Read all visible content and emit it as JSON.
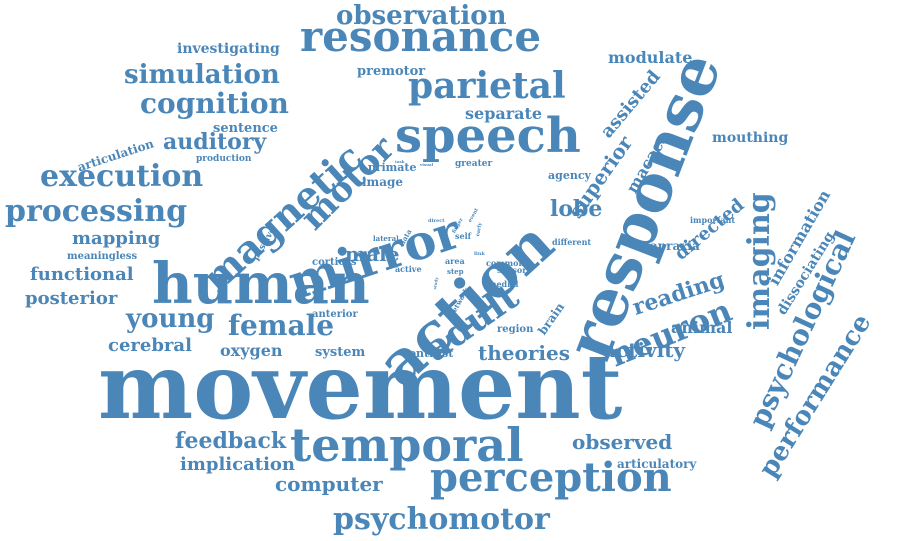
{
  "color": "#4a86b8",
  "words": [
    "movement",
    "response",
    "action",
    "human",
    "mirror",
    "speech",
    "temporal",
    "magnetic",
    "resonance",
    "perception",
    "adult",
    "parietal",
    "psychological",
    "imaging",
    "neuron",
    "performance",
    "motor",
    "processing",
    "execution",
    "psychomotor",
    "female",
    "cognition",
    "simulation",
    "observation",
    "young",
    "feedback",
    "auditory",
    "mapping",
    "observed",
    "reading",
    "functional",
    "lobe",
    "superior",
    "directed",
    "information",
    "posterior",
    "activity",
    "theories",
    "implication",
    "computer",
    "assisted",
    "macaca",
    "oxygen",
    "cerebral",
    "male",
    "animal",
    "separate",
    "modulate",
    "investigating",
    "mouthing",
    "dissociating",
    "sentence",
    "articulation",
    "apraxia",
    "articulatory",
    "premotor",
    "image",
    "agency",
    "primate",
    "meaningless",
    "cortices",
    "system",
    "contrast",
    "region",
    "brain",
    "production",
    "anterior",
    "greater",
    "passive",
    "important",
    "different",
    "lateral",
    "active",
    "self",
    "area",
    "common",
    "sensory",
    "medial",
    "network",
    "step",
    "data",
    "direct",
    "finger",
    "task",
    "visual",
    "study",
    "early",
    "link",
    "event"
  ]
}
